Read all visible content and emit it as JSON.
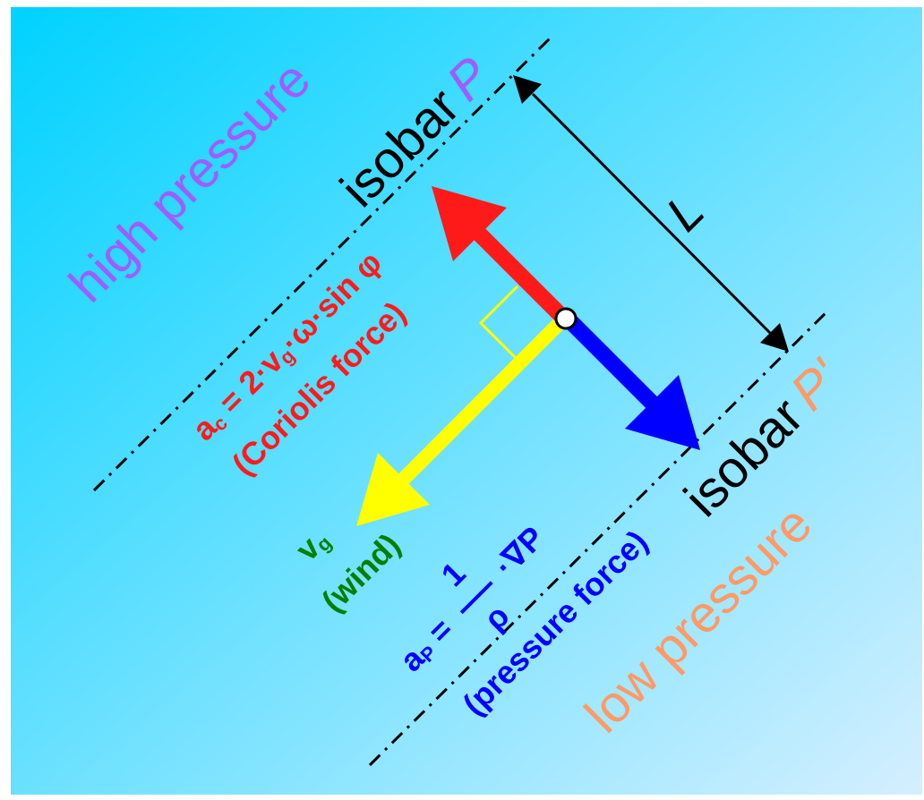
{
  "regions": {
    "high": {
      "label": "high pressure",
      "color": "#a05cff"
    },
    "low": {
      "label": "low pressure",
      "color": "#ff9966"
    }
  },
  "isobars": {
    "top": {
      "word": "isobar",
      "symbol": "P",
      "symbol_color": "#a05cff"
    },
    "bottom": {
      "word": "isobar",
      "symbol": "P'",
      "symbol_color": "#ff9966"
    }
  },
  "distance": {
    "label": "L"
  },
  "coriolis": {
    "color": "#ff1a1a",
    "formula": {
      "a": "a",
      "sub_c": "c",
      "eq": " = 2·v",
      "sub_g": "g",
      "rest": "·ω·sin φ"
    },
    "caption": "(Coriolis force)"
  },
  "pressure": {
    "color": "#0000ff",
    "formula": {
      "a": "a",
      "sub_p": "P",
      "eq": " = ",
      "numerator": "1",
      "denominator": "ρ",
      "grad": "·∇P"
    },
    "caption": "(pressure force)"
  },
  "wind": {
    "color": "#ffff00",
    "label_color": "#008000",
    "v": "v",
    "sub_g": "g",
    "caption": "(wind)"
  },
  "right_angle_color": "#ffff00"
}
